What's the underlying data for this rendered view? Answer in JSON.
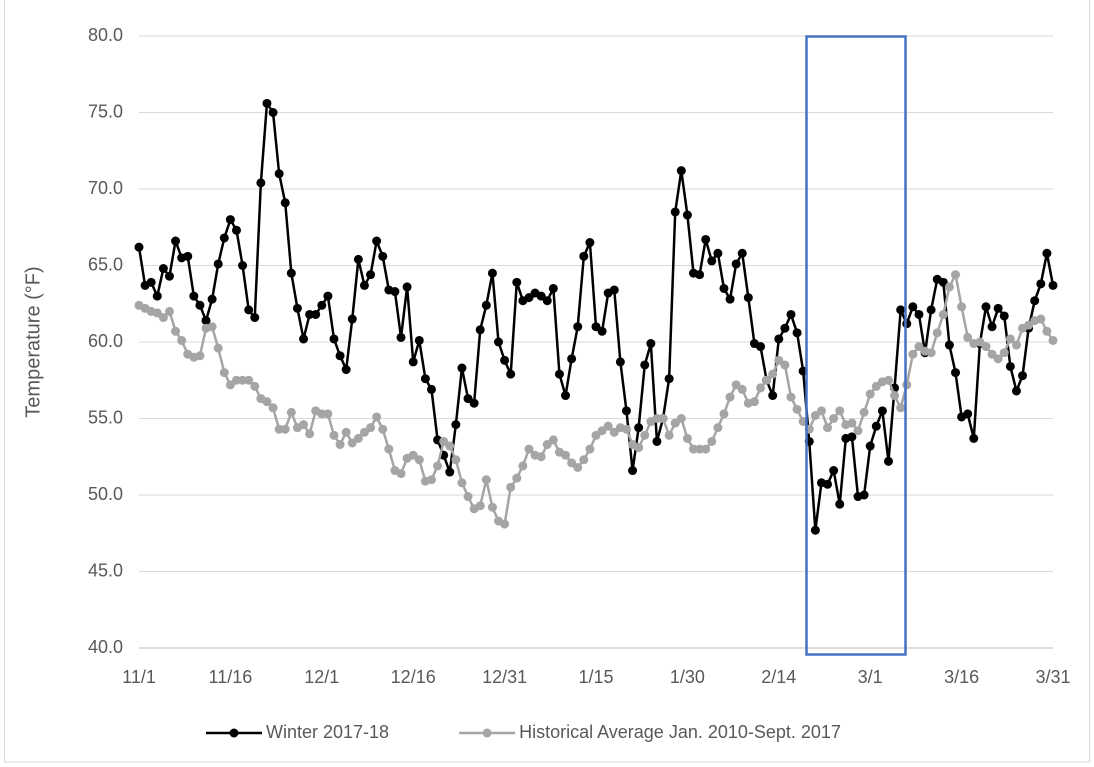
{
  "chart_data": {
    "type": "line",
    "y_label": "Temperature (°F)",
    "categories": [
      "11/1",
      null,
      null,
      null,
      null,
      null,
      null,
      null,
      null,
      null,
      null,
      null,
      null,
      null,
      null,
      "11/16",
      null,
      null,
      null,
      null,
      null,
      null,
      null,
      null,
      null,
      null,
      null,
      null,
      null,
      null,
      "12/1",
      null,
      null,
      null,
      null,
      null,
      null,
      null,
      null,
      null,
      null,
      null,
      null,
      null,
      null,
      "12/16",
      null,
      null,
      null,
      null,
      null,
      null,
      null,
      null,
      null,
      null,
      null,
      null,
      null,
      null,
      "12/31",
      null,
      null,
      null,
      null,
      null,
      null,
      null,
      null,
      null,
      null,
      null,
      null,
      null,
      null,
      "1/15",
      null,
      null,
      null,
      null,
      null,
      null,
      null,
      null,
      null,
      null,
      null,
      null,
      null,
      null,
      "1/30",
      null,
      null,
      null,
      null,
      null,
      null,
      null,
      null,
      null,
      null,
      null,
      null,
      null,
      null,
      "2/14",
      null,
      null,
      null,
      null,
      null,
      null,
      null,
      null,
      null,
      null,
      null,
      null,
      null,
      null,
      "3/1",
      null,
      null,
      null,
      null,
      null,
      null,
      null,
      null,
      null,
      null,
      null,
      null,
      null,
      null,
      "3/16",
      null,
      null,
      null,
      null,
      null,
      null,
      null,
      null,
      null,
      null,
      null,
      null,
      null,
      null,
      "3/31"
    ],
    "series": [
      {
        "name": "Winter 2017-18",
        "color": "#000000",
        "values": [
          66.2,
          63.7,
          63.9,
          63.0,
          64.8,
          64.3,
          66.6,
          65.5,
          65.6,
          63.0,
          62.4,
          61.4,
          62.8,
          65.1,
          66.8,
          68.0,
          67.3,
          65.0,
          62.1,
          61.6,
          70.4,
          75.6,
          75.0,
          71.0,
          69.1,
          64.5,
          62.2,
          60.2,
          61.8,
          61.8,
          62.4,
          63.0,
          60.2,
          59.1,
          58.2,
          61.5,
          65.4,
          63.7,
          64.4,
          66.6,
          65.6,
          63.4,
          63.3,
          60.3,
          63.6,
          58.7,
          60.1,
          57.6,
          56.9,
          53.6,
          52.6,
          51.5,
          54.6,
          58.3,
          56.3,
          56.0,
          60.8,
          62.4,
          64.5,
          60.0,
          58.8,
          57.9,
          63.9,
          62.7,
          62.9,
          63.2,
          63.0,
          62.7,
          63.5,
          57.9,
          56.5,
          58.9,
          61.0,
          65.6,
          66.5,
          61.0,
          60.7,
          63.2,
          63.4,
          58.7,
          55.5,
          51.6,
          54.4,
          58.5,
          59.9,
          53.5,
          55.0,
          57.6,
          68.5,
          71.2,
          68.3,
          64.5,
          64.4,
          66.7,
          65.3,
          65.8,
          63.5,
          62.8,
          65.1,
          65.8,
          62.9,
          59.9,
          59.7,
          57.5,
          56.5,
          60.2,
          60.9,
          61.8,
          60.6,
          58.1,
          53.5,
          47.7,
          50.8,
          50.7,
          51.6,
          49.4,
          53.7,
          53.8,
          49.9,
          50.0,
          53.2,
          54.5,
          55.5,
          52.2,
          57.0,
          62.1,
          61.2,
          62.3,
          61.8,
          59.3,
          62.1,
          64.1,
          63.9,
          59.8,
          58.0,
          55.1,
          55.3,
          53.7,
          59.9,
          62.3,
          61.0,
          62.2,
          61.7,
          58.4,
          56.8,
          57.8,
          60.9,
          62.7,
          63.8,
          65.8,
          63.7
        ]
      },
      {
        "name": "Historical Average Jan. 2010-Sept. 2017",
        "color": "#a5a5a5",
        "values": [
          62.4,
          62.2,
          62.0,
          61.9,
          61.6,
          62.0,
          60.7,
          60.1,
          59.2,
          59.0,
          59.1,
          60.9,
          61.0,
          59.6,
          58.0,
          57.2,
          57.5,
          57.5,
          57.5,
          57.1,
          56.3,
          56.1,
          55.7,
          54.3,
          54.3,
          55.4,
          54.4,
          54.6,
          54.0,
          55.5,
          55.3,
          55.3,
          53.9,
          53.3,
          54.1,
          53.4,
          53.7,
          54.1,
          54.4,
          55.1,
          54.3,
          53.0,
          51.6,
          51.4,
          52.4,
          52.6,
          52.3,
          50.9,
          51.0,
          51.9,
          53.5,
          53.2,
          52.3,
          50.8,
          49.9,
          49.1,
          49.3,
          51.0,
          49.2,
          48.3,
          48.1,
          50.5,
          51.1,
          51.9,
          53.0,
          52.6,
          52.5,
          53.3,
          53.6,
          52.8,
          52.6,
          52.1,
          51.8,
          52.3,
          53.0,
          53.9,
          54.2,
          54.5,
          54.1,
          54.4,
          54.3,
          53.3,
          53.1,
          53.9,
          54.8,
          55.0,
          55.0,
          53.9,
          54.7,
          55.0,
          53.7,
          53.0,
          53.0,
          53.0,
          53.5,
          54.4,
          55.3,
          56.4,
          57.2,
          56.9,
          56.0,
          56.1,
          57.0,
          57.5,
          57.9,
          58.8,
          58.5,
          56.4,
          55.6,
          54.8,
          54.3,
          55.2,
          55.5,
          54.4,
          55.0,
          55.5,
          54.6,
          54.7,
          54.2,
          55.4,
          56.6,
          57.1,
          57.4,
          57.5,
          56.5,
          55.7,
          57.2,
          59.2,
          59.7,
          59.4,
          59.3,
          60.6,
          61.8,
          63.6,
          64.4,
          62.3,
          60.3,
          59.9,
          60.0,
          59.7,
          59.2,
          58.9,
          59.3,
          60.2,
          59.8,
          60.9,
          61.1,
          61.4,
          61.5,
          60.7,
          60.1
        ]
      }
    ],
    "ylim": [
      40,
      80
    ],
    "yticks": [
      {
        "value": 40,
        "label": "40.0"
      },
      {
        "value": 45,
        "label": "45.0"
      },
      {
        "value": 50,
        "label": "50.0"
      },
      {
        "value": 55,
        "label": "55.0"
      },
      {
        "value": 60,
        "label": "60.0"
      },
      {
        "value": 65,
        "label": "65.0"
      },
      {
        "value": 70,
        "label": "70.0"
      },
      {
        "value": 75,
        "label": "75.0"
      },
      {
        "value": 80,
        "label": "80.0"
      }
    ],
    "grid": true,
    "legend": "bottom"
  }
}
